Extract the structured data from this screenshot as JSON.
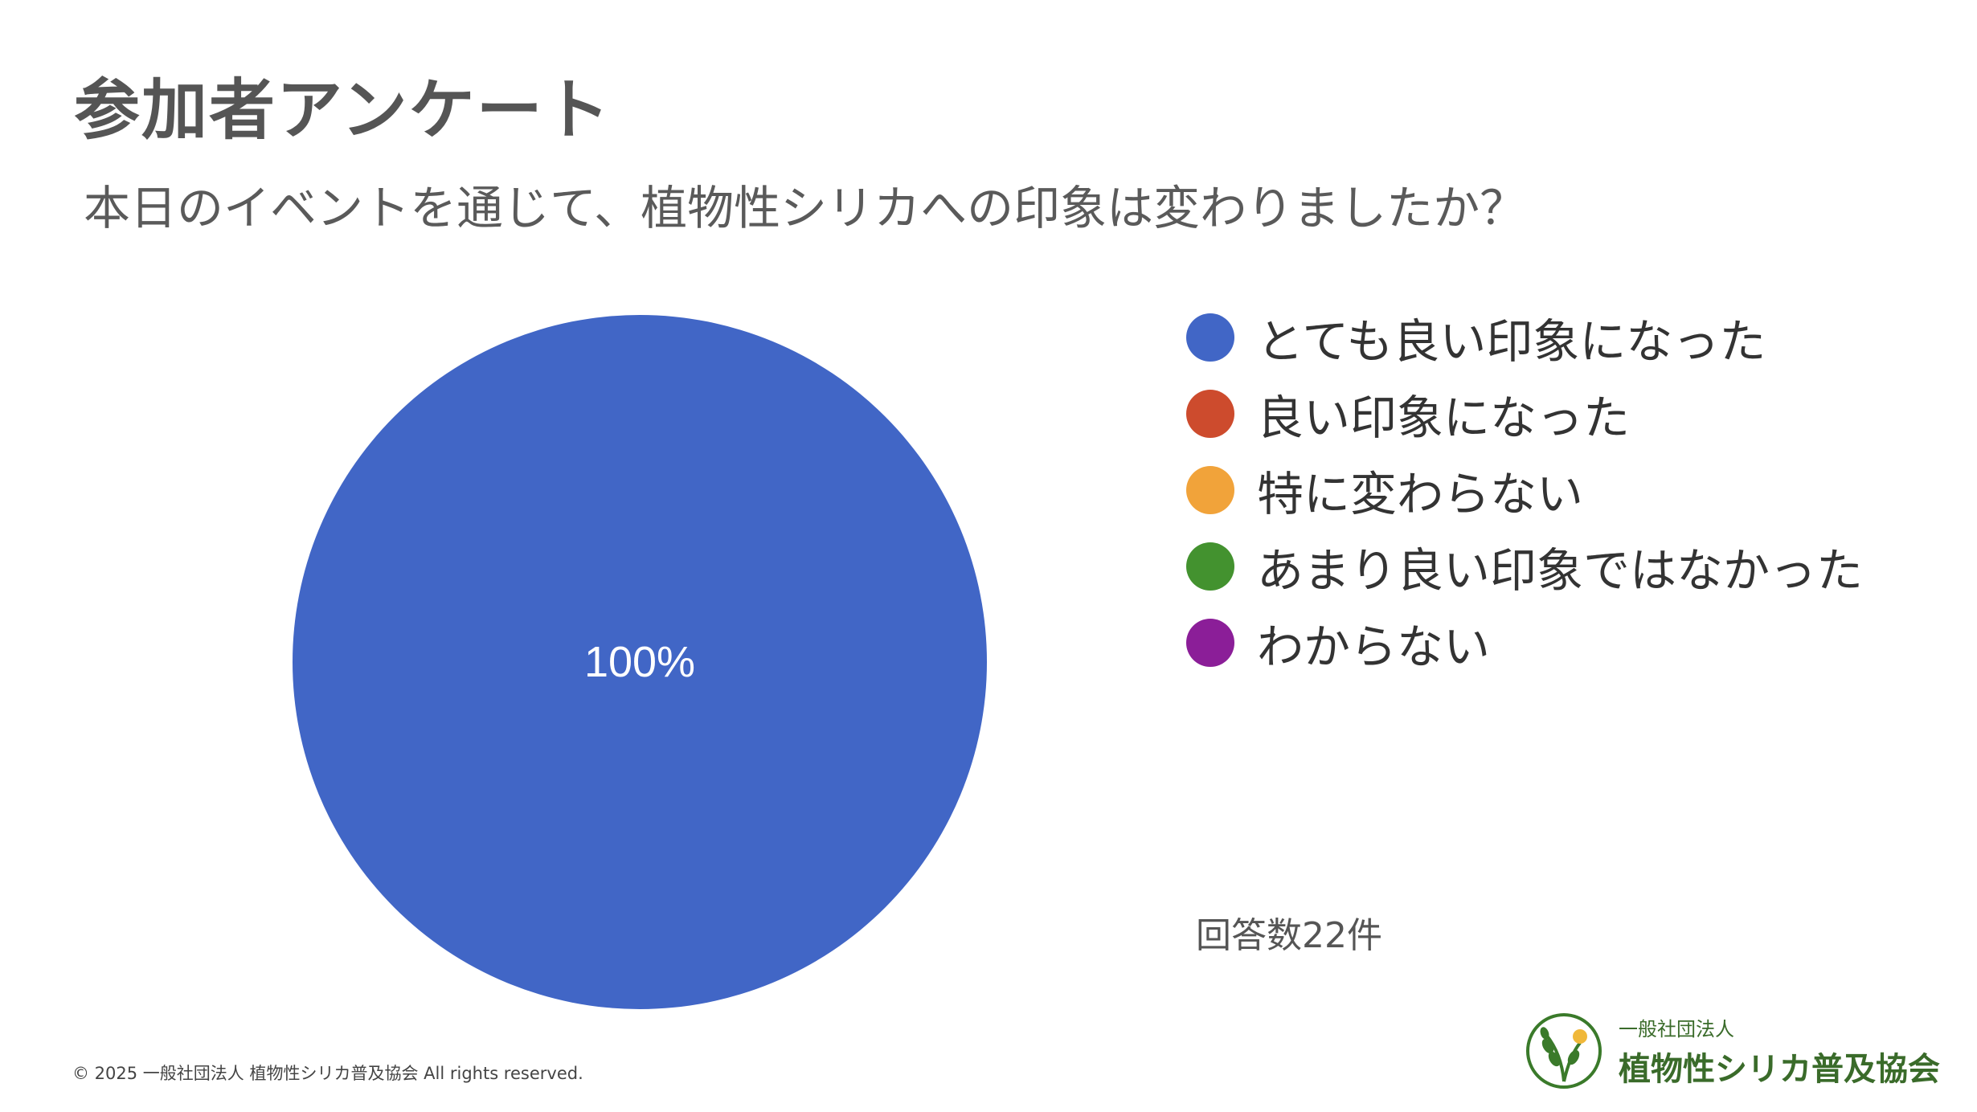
{
  "header": {
    "title": "参加者アンケート",
    "question": "本日のイベントを通じて、植物性シリカへの印象は変わりましたか？"
  },
  "chart_data": {
    "type": "pie",
    "categories": [
      "とても良い印象になった",
      "良い印象になった",
      "特に変わらない",
      "あまり良い印象ではなかった",
      "わからない"
    ],
    "values": [
      100,
      0,
      0,
      0,
      0
    ],
    "colors": [
      "#4166c6",
      "#cd4b2d",
      "#f1a33a",
      "#43922f",
      "#8b1e98"
    ],
    "data_labels": [
      "100%"
    ],
    "legend_position": "right"
  },
  "footer": {
    "response_count": "回答数22件",
    "copyright": "© 2025 一般社団法人 植物性シリカ普及協会 All rights reserved.",
    "logo_sub": "一般社団法人",
    "logo_main": "植物性シリカ普及協会",
    "logo_icon": "rice-plant-logo-icon"
  }
}
